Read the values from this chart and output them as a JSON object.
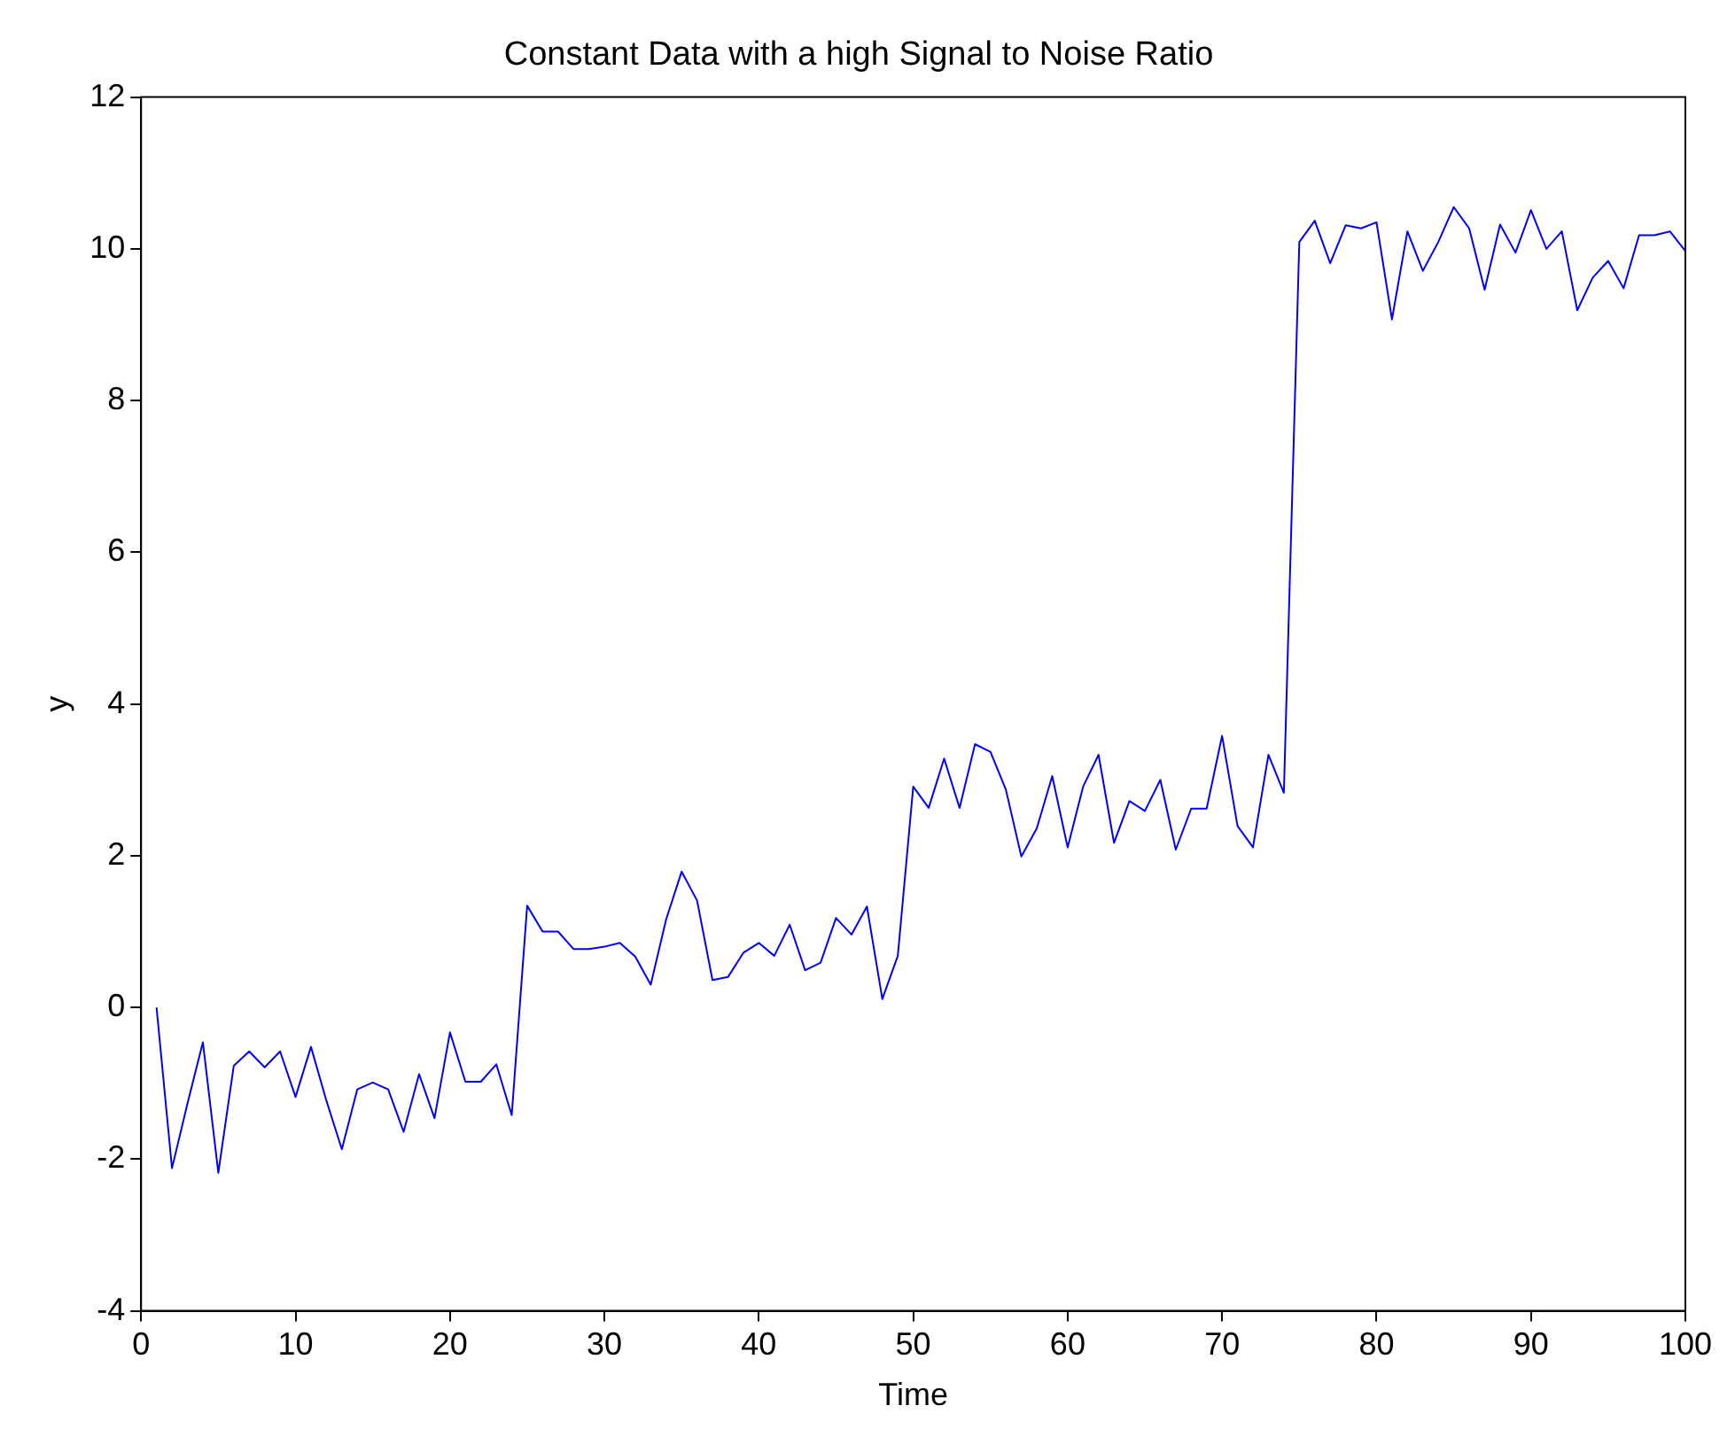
{
  "chart_data": {
    "type": "line",
    "title": "Constant Data with a high Signal to Noise Ratio",
    "xlabel": "Time",
    "ylabel": "y",
    "x": [
      1,
      2,
      3,
      4,
      5,
      6,
      7,
      8,
      9,
      10,
      11,
      12,
      13,
      14,
      15,
      16,
      17,
      18,
      19,
      20,
      21,
      22,
      23,
      24,
      25,
      26,
      27,
      28,
      29,
      30,
      31,
      32,
      33,
      34,
      35,
      36,
      37,
      38,
      39,
      40,
      41,
      42,
      43,
      44,
      45,
      46,
      47,
      48,
      49,
      50,
      51,
      52,
      53,
      54,
      55,
      56,
      57,
      58,
      59,
      60,
      61,
      62,
      63,
      64,
      65,
      66,
      67,
      68,
      69,
      70,
      71,
      72,
      73,
      74,
      75,
      76,
      77,
      78,
      79,
      80,
      81,
      82,
      83,
      84,
      85,
      86,
      87,
      88,
      89,
      90,
      91,
      92,
      93,
      94,
      95,
      96,
      97,
      98,
      99,
      100
    ],
    "series": [
      {
        "color": "#0000ff",
        "values": [
          0,
          -2.12,
          -1.27,
          -0.46,
          -2.18,
          -0.77,
          -0.58,
          -0.79,
          -0.58,
          -1.18,
          -0.52,
          -1.23,
          -1.87,
          -1.08,
          -0.99,
          -1.08,
          -1.64,
          -0.88,
          -1.46,
          -0.33,
          -0.98,
          -0.98,
          -0.75,
          -1.42,
          1.34,
          1.0,
          1.0,
          0.77,
          0.77,
          0.8,
          0.85,
          0.67,
          0.3,
          1.16,
          1.79,
          1.41,
          0.36,
          0.4,
          0.72,
          0.85,
          0.68,
          1.09,
          0.49,
          0.59,
          1.18,
          0.96,
          1.33,
          0.11,
          0.68,
          2.91,
          2.63,
          3.28,
          2.63,
          3.47,
          3.37,
          2.87,
          1.99,
          2.36,
          3.05,
          2.11,
          2.91,
          3.33,
          2.17,
          2.72,
          2.59,
          3.0,
          2.08,
          2.62,
          2.62,
          3.58,
          2.39,
          2.11,
          3.33,
          2.83,
          10.09,
          10.37,
          9.81,
          10.31,
          10.27,
          10.35,
          9.07,
          10.23,
          9.71,
          10.09,
          10.55,
          10.27,
          9.46,
          10.32,
          9.95,
          10.51,
          10.0,
          10.23,
          9.19,
          9.62,
          9.84,
          9.48,
          10.18,
          10.18,
          10.23,
          9.97
        ]
      }
    ],
    "xlim": [
      0,
      100
    ],
    "xticks": [
      0,
      10,
      20,
      30,
      40,
      50,
      60,
      70,
      80,
      90,
      100
    ],
    "ylim": [
      -4,
      12
    ],
    "yticks": [
      -4,
      -2,
      0,
      2,
      4,
      6,
      8,
      10,
      12
    ],
    "grid": false,
    "legend": false,
    "marker": "none",
    "line_style": "solid"
  }
}
